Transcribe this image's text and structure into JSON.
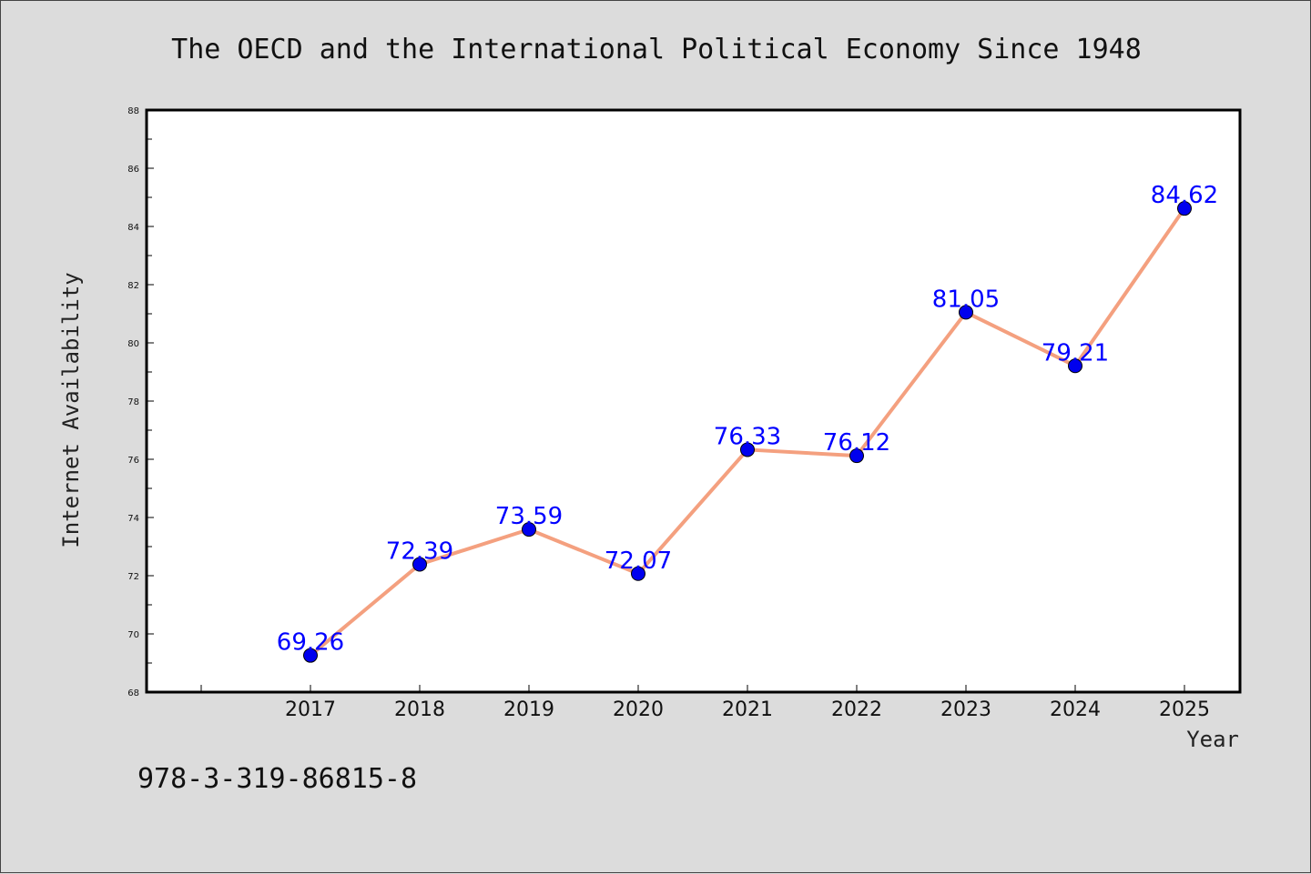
{
  "chart_data": {
    "type": "line",
    "title": "The OECD and the International Political Economy Since 1948",
    "xlabel": "Year",
    "ylabel": "Internet Availability",
    "categories": [
      "2017",
      "2018",
      "2019",
      "2020",
      "2021",
      "2022",
      "2023",
      "2024",
      "2025"
    ],
    "series": [
      {
        "values": [
          69.26,
          72.39,
          73.59,
          72.07,
          76.33,
          76.12,
          81.05,
          79.21,
          84.62
        ],
        "data_labels": [
          "69.26",
          "72.39",
          "73.59",
          "72.07",
          "76.33",
          "76.12",
          "81.05",
          "79.21",
          "84.62"
        ]
      }
    ],
    "ylim": [
      68,
      88
    ],
    "yticks": [
      "68",
      "70",
      "72",
      "74",
      "76",
      "78",
      "80",
      "82",
      "84",
      "86",
      "88"
    ],
    "grid": false,
    "line_color": "#f4a07f",
    "marker_color": "#0000ee",
    "label_color": "#0000ff"
  },
  "footer": {
    "isbn": "978-3-319-86815-8"
  }
}
